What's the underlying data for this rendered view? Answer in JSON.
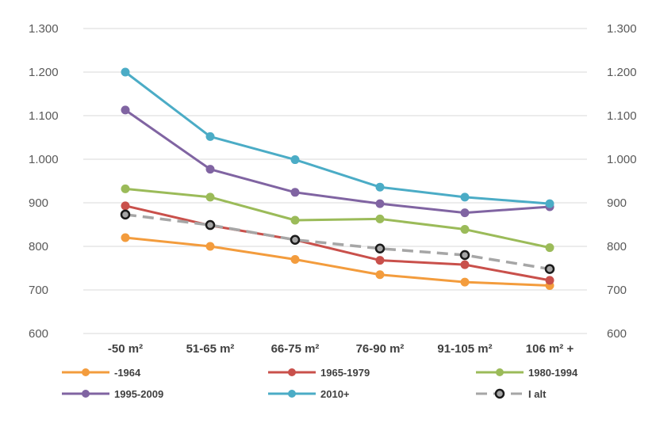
{
  "chart_data": {
    "type": "line",
    "title": "",
    "xlabel": "",
    "ylabel": "",
    "categories": [
      "-50 m²",
      "51-65 m²",
      "66-75 m²",
      "76-90 m²",
      "91-105 m²",
      "106 m² +"
    ],
    "ylim": [
      600,
      1300
    ],
    "yticks": [
      600,
      700,
      800,
      900,
      1000,
      1100,
      1200,
      1300
    ],
    "ytick_labels": [
      "600",
      "700",
      "800",
      "900",
      "1.000",
      "1.100",
      "1.200",
      "1.300"
    ],
    "grid": true,
    "secondary_axis": true,
    "legend_position": "bottom",
    "series": [
      {
        "name": "-1964",
        "color": "#f39c3d",
        "style": "solid",
        "marker": "circle",
        "values": [
          820,
          800,
          770,
          735,
          718,
          710
        ]
      },
      {
        "name": "1965-1979",
        "color": "#c9504b",
        "style": "solid",
        "marker": "circle",
        "values": [
          893,
          848,
          815,
          768,
          758,
          722
        ]
      },
      {
        "name": "1980-1994",
        "color": "#9bbb59",
        "style": "solid",
        "marker": "circle",
        "values": [
          932,
          913,
          860,
          863,
          839,
          797
        ]
      },
      {
        "name": "1995-2009",
        "color": "#8064a2",
        "style": "solid",
        "marker": "circle",
        "values": [
          1113,
          977,
          924,
          898,
          877,
          891
        ]
      },
      {
        "name": "2010+",
        "color": "#4bacc6",
        "style": "solid",
        "marker": "circle",
        "values": [
          1200,
          1052,
          999,
          936,
          913,
          898
        ]
      },
      {
        "name": "I alt",
        "color": "#a6a6a6",
        "style": "dashed",
        "marker": "ring",
        "values": [
          873,
          849,
          815,
          795,
          780,
          748
        ]
      }
    ]
  }
}
